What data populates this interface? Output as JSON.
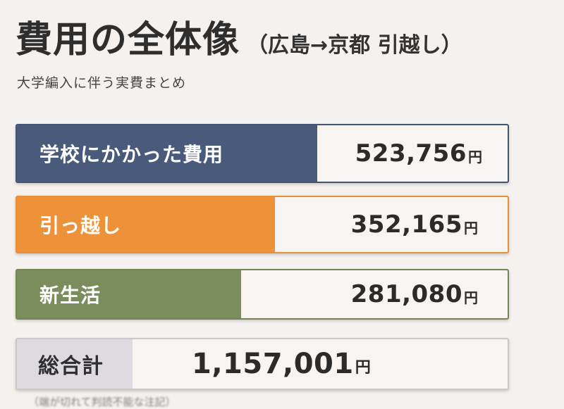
{
  "header": {
    "title": "費用の全体像",
    "title_suffix": "（広島→京都 引越し）",
    "subtitle": "大学編入に伴う実費まとめ"
  },
  "rows": [
    {
      "label": "学校にかかった費用",
      "amount": "523,756",
      "unit": "円",
      "color": "#4a5a7b"
    },
    {
      "label": "引っ越し",
      "amount": "352,165",
      "unit": "円",
      "color": "#ee9239"
    },
    {
      "label": "新生活",
      "amount": "281,080",
      "unit": "円",
      "color": "#7b8c5d"
    }
  ],
  "total": {
    "label": "総合計",
    "amount": "1,157,001",
    "unit": "円",
    "color": "#dddbe0"
  },
  "footnote": "（端が切れて判読不能な注記）"
}
